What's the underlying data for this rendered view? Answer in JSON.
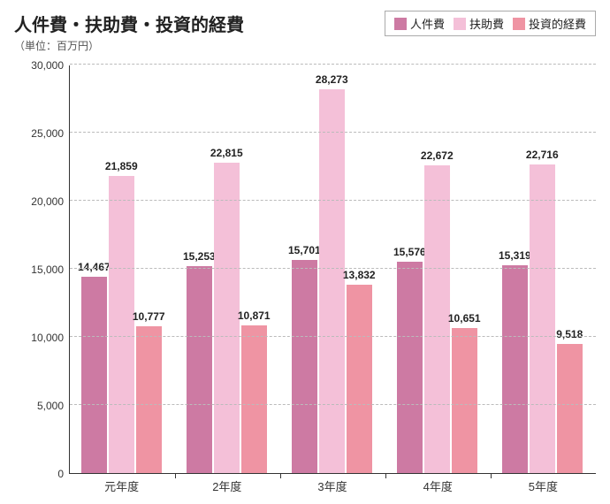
{
  "title": "人件費・扶助費・投資的経費",
  "unit_label": "（単位：百万円）",
  "legend": [
    {
      "label": "人件費",
      "color": "#cd7aa3"
    },
    {
      "label": "扶助費",
      "color": "#f4c0d8"
    },
    {
      "label": "投資的経費",
      "color": "#ef94a3"
    }
  ],
  "chart": {
    "type": "bar",
    "ylim": [
      0,
      30000
    ],
    "ytick_step": 5000,
    "yticks": [
      "0",
      "5,000",
      "10,000",
      "15,000",
      "20,000",
      "25,000",
      "30,000"
    ],
    "categories": [
      "元年度",
      "2年度",
      "3年度",
      "4年度",
      "5年度"
    ],
    "series": [
      {
        "name": "人件費",
        "color": "#cd7aa3",
        "values": [
          14467,
          15253,
          15701,
          15576,
          15319
        ],
        "labels": [
          "14,467",
          "15,253",
          "15,701",
          "15,576",
          "15,319"
        ]
      },
      {
        "name": "扶助費",
        "color": "#f4c0d8",
        "values": [
          21859,
          22815,
          28273,
          22672,
          22716
        ],
        "labels": [
          "21,859",
          "22,815",
          "28,273",
          "22,672",
          "22,716"
        ]
      },
      {
        "name": "投資的経費",
        "color": "#ef94a3",
        "values": [
          10777,
          10871,
          13832,
          10651,
          9518
        ],
        "labels": [
          "10,777",
          "10,871",
          "13,832",
          "10,651",
          "9,518"
        ]
      }
    ],
    "grid_color": "#bbbbbb",
    "axis_color": "#333333",
    "background_color": "#ffffff",
    "bar_group_width_pct": 78,
    "label_fontsize": 12
  }
}
